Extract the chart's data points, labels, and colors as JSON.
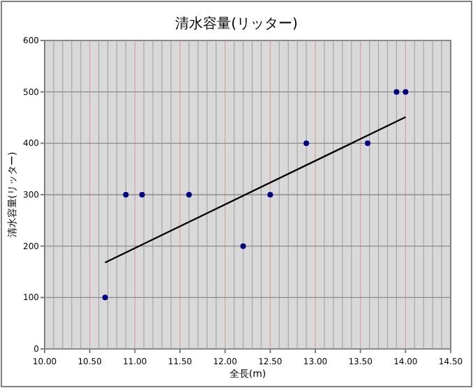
{
  "chart_data": {
    "type": "scatter",
    "title": "清水容量(リッター)",
    "xlabel": "全長(m)",
    "ylabel": "清水容量(リッター)",
    "series": [
      {
        "color": "#000080",
        "marker": "circle",
        "x": [
          10.67,
          10.9,
          11.08,
          11.6,
          12.2,
          12.5,
          12.9,
          13.58,
          13.9,
          14.0
        ],
        "values": [
          100,
          300,
          300,
          300,
          200,
          300,
          400,
          400,
          500,
          500
        ]
      },
      {
        "type": "line",
        "color": "#000000",
        "x": [
          10.67,
          14.0
        ],
        "values": [
          168,
          451
        ]
      }
    ],
    "xlim": [
      10,
      14.5
    ],
    "xticks": [
      {
        "value": 10,
        "label": "10.00"
      },
      {
        "value": 10.5,
        "label": "10.50"
      },
      {
        "value": 11,
        "label": "11.00"
      },
      {
        "value": 11.5,
        "label": "11.50"
      },
      {
        "value": 12,
        "label": "12.00"
      },
      {
        "value": 12.5,
        "label": "12.50"
      },
      {
        "value": 13,
        "label": "13.00"
      },
      {
        "value": 13.5,
        "label": "13.50"
      },
      {
        "value": 14,
        "label": "14.00"
      },
      {
        "value": 14.5,
        "label": "14.50"
      }
    ],
    "ylim": [
      0,
      600
    ],
    "yticks": [
      0,
      100,
      200,
      300,
      400,
      500,
      600
    ],
    "grid": true
  }
}
